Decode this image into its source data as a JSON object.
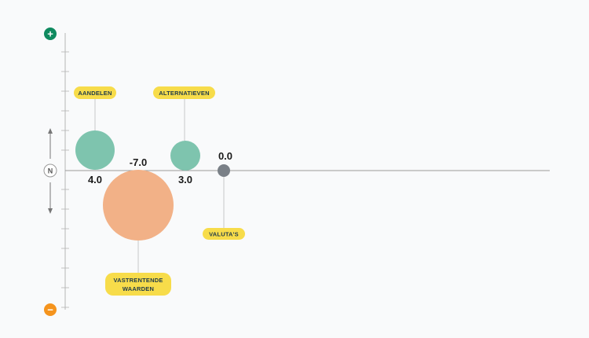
{
  "chart_data": {
    "type": "bubble",
    "title": "",
    "xlabel": "",
    "ylabel": "",
    "ylim": [
      -5,
      5
    ],
    "grid": false,
    "neutral_label": "N",
    "positive_symbol": "+",
    "negative_symbol": "−",
    "series": [
      {
        "label": "AANDELEN",
        "value": 4.0,
        "value_label": "4.0",
        "color": "#7ec4ae"
      },
      {
        "label": "VASTRENTENDE WAARDEN",
        "label_lines": [
          "VASTRENTENDE",
          "WAARDEN"
        ],
        "value": -7.0,
        "value_label": "-7.0",
        "color": "#f2b187"
      },
      {
        "label": "ALTERNATIEVEN",
        "value": 3.0,
        "value_label": "3.0",
        "color": "#7ec4ae"
      },
      {
        "label": "VALUTA'S",
        "value": 0.0,
        "value_label": "0.0",
        "color": "#7a8087"
      }
    ],
    "colors": {
      "positive": "#0f8a5f",
      "negative": "#f5941d",
      "label_pill": "#f7dc4a",
      "axis": "#9a9a9a"
    }
  }
}
